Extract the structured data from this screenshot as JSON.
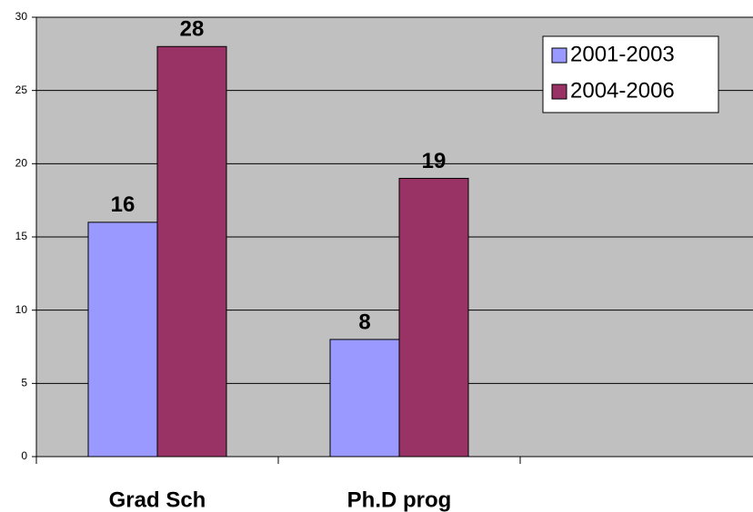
{
  "chart_data": {
    "type": "bar",
    "categories": [
      "Grad Sch",
      "Ph.D prog",
      null
    ],
    "series": [
      {
        "name": "2001-2003",
        "color": "#9999ff",
        "values": [
          16,
          8,
          null
        ]
      },
      {
        "name": "2004-2006",
        "color": "#993366",
        "values": [
          28,
          19,
          null
        ]
      }
    ],
    "ylim": [
      0,
      30
    ],
    "yticks": [
      0,
      5,
      10,
      15,
      20,
      25,
      30
    ],
    "grid": true,
    "legend": "upper right"
  }
}
